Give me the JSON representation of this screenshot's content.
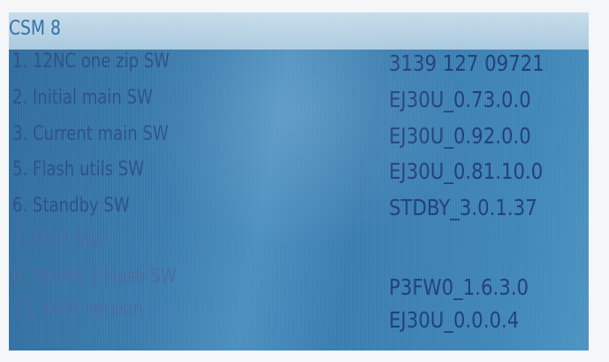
{
  "menu": {
    "title": "CSM 8",
    "items": [
      {
        "label": "1. 12NC one zip SW",
        "value": "3139 127 09721"
      },
      {
        "label": "2. Initial main SW",
        "value": "EJ30U_0.73.0.0"
      },
      {
        "label": "3. Current main SW",
        "value": "EJ30U_0.92.0.0"
      },
      {
        "label": "5. Flash utils SW",
        "value": "EJ30U_0.81.10.0"
      },
      {
        "label": "6. Standby SW",
        "value": "STDBY_3.0.1.37"
      },
      {
        "label": "7. MOP SW",
        "value": ""
      },
      {
        "label": "8. Pacific 3 Flash SW",
        "value": "P3FW0_1.6.3.0"
      },
      {
        "label": "11. NVM version",
        "value": "EJ30U_0.0.0.4"
      }
    ]
  }
}
